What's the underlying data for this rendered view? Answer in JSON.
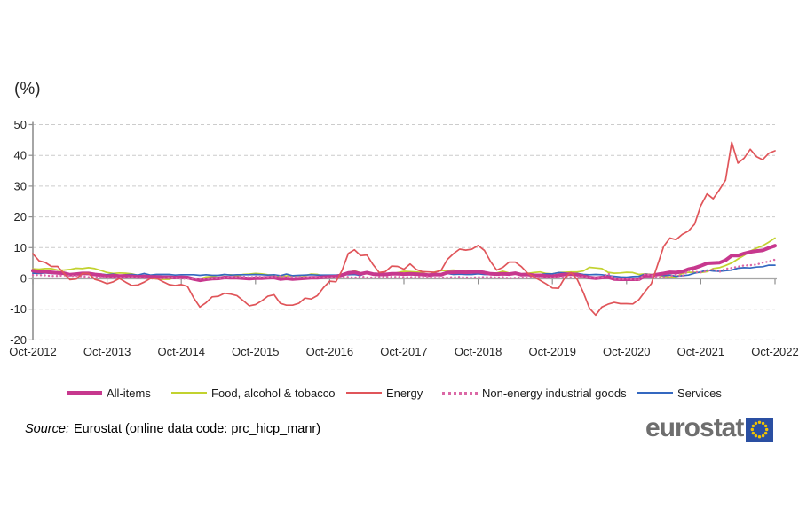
{
  "chart_data": {
    "type": "line",
    "unit_label": "(%)",
    "x_tick_labels": [
      "Oct-2012",
      "Oct-2013",
      "Oct-2014",
      "Oct-2015",
      "Oct-2016",
      "Oct-2017",
      "Oct-2018",
      "Oct-2019",
      "Oct-2020",
      "Oct-2021",
      "Oct-2022"
    ],
    "y_ticks": [
      50,
      40,
      30,
      20,
      10,
      0,
      -10,
      -20
    ],
    "ylim": [
      -20,
      50
    ],
    "x_monthly_start": "Oct-2012",
    "x_monthly_end": "Oct-2022",
    "grid": "dashed-horizontal",
    "legend_position": "bottom",
    "series": [
      {
        "name": "All-items",
        "style": "thick",
        "color": "#c7388e",
        "values": [
          2.5,
          2.2,
          2.2,
          2.0,
          1.8,
          1.7,
          1.2,
          1.4,
          1.6,
          1.6,
          1.3,
          1.1,
          0.7,
          0.9,
          0.8,
          0.8,
          0.7,
          0.5,
          0.7,
          0.5,
          0.5,
          0.4,
          0.4,
          0.3,
          0.4,
          0.3,
          -0.2,
          -0.6,
          -0.3,
          -0.1,
          0.0,
          0.3,
          0.2,
          0.2,
          0.1,
          -0.1,
          0.1,
          0.1,
          0.2,
          0.3,
          -0.2,
          0.0,
          -0.2,
          -0.1,
          0.1,
          0.2,
          0.2,
          0.4,
          0.5,
          0.6,
          1.1,
          1.8,
          2.0,
          1.5,
          1.9,
          1.4,
          1.3,
          1.3,
          1.5,
          1.5,
          1.4,
          1.5,
          1.4,
          1.3,
          1.1,
          1.3,
          1.2,
          1.9,
          2.0,
          2.1,
          2.0,
          2.1,
          2.2,
          1.9,
          1.5,
          1.4,
          1.5,
          1.4,
          1.7,
          1.2,
          1.3,
          1.0,
          1.0,
          0.8,
          0.7,
          1.0,
          1.3,
          1.4,
          1.2,
          0.7,
          0.3,
          0.1,
          0.3,
          0.4,
          -0.2,
          -0.3,
          -0.3,
          -0.3,
          -0.3,
          0.9,
          0.9,
          1.3,
          1.6,
          2.0,
          1.9,
          2.2,
          3.0,
          3.4,
          4.1,
          4.9,
          5.0,
          5.1,
          5.9,
          7.4,
          7.4,
          8.1,
          8.6,
          8.9,
          9.1,
          9.9,
          10.6
        ]
      },
      {
        "name": "Food, alcohol & tobacco",
        "style": "solid",
        "color": "#c2d22f",
        "values": [
          3.1,
          3.0,
          3.2,
          3.2,
          2.7,
          2.7,
          2.9,
          3.3,
          3.2,
          3.5,
          3.2,
          2.6,
          1.9,
          1.6,
          1.8,
          1.7,
          1.5,
          1.0,
          0.7,
          0.1,
          -0.2,
          -0.3,
          -0.3,
          0.3,
          0.5,
          0.5,
          0.0,
          -0.1,
          0.5,
          0.6,
          1.0,
          1.2,
          1.2,
          0.9,
          1.3,
          1.4,
          1.6,
          1.5,
          1.2,
          1.0,
          0.6,
          0.8,
          0.8,
          0.9,
          0.9,
          1.4,
          1.3,
          0.7,
          0.4,
          0.7,
          1.2,
          1.8,
          2.5,
          1.8,
          1.5,
          1.5,
          1.4,
          1.4,
          1.4,
          1.9,
          2.3,
          2.2,
          2.1,
          1.9,
          1.0,
          2.1,
          2.5,
          2.6,
          2.7,
          2.5,
          2.4,
          2.6,
          2.2,
          1.9,
          1.8,
          1.8,
          2.3,
          1.8,
          1.5,
          1.5,
          1.6,
          1.9,
          2.1,
          1.6,
          1.5,
          1.9,
          2.0,
          2.1,
          2.1,
          2.4,
          3.6,
          3.4,
          3.2,
          2.0,
          1.7,
          1.8,
          2.0,
          1.9,
          1.3,
          1.5,
          1.3,
          1.1,
          0.6,
          0.5,
          0.5,
          1.6,
          2.0,
          2.0,
          1.9,
          2.2,
          3.2,
          3.5,
          4.2,
          5.0,
          6.3,
          7.5,
          8.9,
          9.8,
          10.6,
          11.8,
          13.1
        ]
      },
      {
        "name": "Energy",
        "style": "solid",
        "color": "#e0555a",
        "values": [
          8.0,
          5.7,
          5.2,
          3.9,
          3.9,
          1.7,
          -0.4,
          -0.2,
          1.6,
          1.6,
          -0.3,
          -0.9,
          -1.7,
          -1.1,
          0.0,
          -1.2,
          -2.3,
          -2.1,
          -1.2,
          0.0,
          0.1,
          -1.0,
          -2.0,
          -2.3,
          -2.0,
          -2.6,
          -6.3,
          -9.3,
          -7.9,
          -6.0,
          -5.8,
          -4.8,
          -5.1,
          -5.6,
          -7.2,
          -8.9,
          -8.5,
          -7.3,
          -5.8,
          -5.3,
          -8.1,
          -8.7,
          -8.7,
          -8.1,
          -6.4,
          -6.7,
          -5.6,
          -3.0,
          -0.9,
          -1.1,
          2.6,
          8.1,
          9.3,
          7.4,
          7.6,
          4.5,
          1.9,
          2.2,
          4.0,
          3.9,
          3.0,
          4.7,
          2.9,
          2.2,
          2.1,
          2.0,
          2.6,
          6.1,
          8.0,
          9.5,
          9.2,
          9.5,
          10.7,
          9.1,
          5.5,
          2.7,
          3.6,
          5.3,
          5.3,
          3.8,
          1.7,
          0.5,
          -0.6,
          -1.8,
          -3.1,
          -3.2,
          0.2,
          1.9,
          -0.3,
          -4.5,
          -9.7,
          -11.9,
          -9.3,
          -8.4,
          -7.8,
          -8.2,
          -8.2,
          -8.3,
          -6.9,
          -4.2,
          -1.7,
          4.3,
          10.4,
          13.1,
          12.6,
          14.3,
          15.4,
          17.6,
          23.7,
          27.5,
          25.9,
          28.8,
          32.0,
          44.3,
          37.5,
          39.1,
          42.0,
          39.6,
          38.6,
          40.7,
          41.5
        ]
      },
      {
        "name": "Non-energy industrial goods",
        "style": "dotted",
        "color": "#db68a6",
        "values": [
          1.1,
          1.1,
          1.0,
          0.8,
          0.8,
          1.0,
          0.8,
          0.8,
          0.7,
          0.4,
          0.4,
          0.4,
          0.3,
          0.2,
          0.3,
          0.2,
          0.4,
          0.2,
          0.1,
          0.0,
          -0.1,
          0.0,
          0.3,
          0.2,
          -0.1,
          -0.1,
          0.0,
          -0.1,
          -0.1,
          0.0,
          0.1,
          0.2,
          0.4,
          0.4,
          0.6,
          0.3,
          0.6,
          0.5,
          0.5,
          0.7,
          0.7,
          0.5,
          0.5,
          0.5,
          0.4,
          0.4,
          0.3,
          0.3,
          0.3,
          0.3,
          0.3,
          0.5,
          0.2,
          0.7,
          0.3,
          0.3,
          0.4,
          0.5,
          0.5,
          0.5,
          0.4,
          0.4,
          0.5,
          0.6,
          0.6,
          0.2,
          0.3,
          0.3,
          0.4,
          0.5,
          0.3,
          0.3,
          0.4,
          0.4,
          0.4,
          0.3,
          0.4,
          0.1,
          0.2,
          0.3,
          0.2,
          0.4,
          0.3,
          0.2,
          0.3,
          0.4,
          0.5,
          0.3,
          0.5,
          0.5,
          0.3,
          0.2,
          0.2,
          1.6,
          -0.1,
          -0.3,
          -0.1,
          -0.3,
          -0.5,
          1.5,
          1.0,
          0.3,
          0.4,
          0.7,
          1.2,
          0.7,
          2.6,
          2.1,
          2.0,
          2.4,
          2.9,
          2.1,
          3.1,
          3.4,
          3.8,
          4.2,
          4.3,
          4.5,
          5.1,
          5.5,
          6.1
        ]
      },
      {
        "name": "Services",
        "style": "solid",
        "color": "#3468c0",
        "values": [
          1.7,
          1.6,
          1.8,
          1.6,
          1.5,
          1.8,
          1.1,
          1.5,
          1.4,
          1.4,
          1.4,
          1.4,
          1.2,
          1.4,
          1.0,
          1.2,
          1.3,
          1.1,
          1.6,
          1.1,
          1.3,
          1.3,
          1.3,
          1.1,
          1.2,
          1.2,
          1.2,
          1.0,
          1.2,
          1.0,
          1.0,
          1.3,
          1.1,
          1.2,
          1.2,
          1.2,
          1.3,
          1.2,
          1.1,
          1.2,
          0.9,
          1.4,
          0.9,
          1.0,
          1.1,
          1.2,
          1.1,
          1.1,
          1.1,
          1.1,
          1.3,
          1.2,
          1.3,
          1.0,
          1.8,
          1.3,
          1.6,
          1.5,
          1.6,
          1.5,
          1.2,
          1.2,
          1.2,
          1.2,
          1.3,
          1.5,
          1.0,
          1.6,
          1.3,
          1.4,
          1.3,
          1.3,
          1.5,
          1.3,
          1.3,
          1.6,
          1.4,
          1.1,
          1.9,
          1.0,
          1.6,
          1.2,
          1.3,
          1.5,
          1.5,
          1.9,
          1.8,
          1.5,
          1.6,
          1.3,
          1.2,
          1.3,
          1.2,
          0.9,
          0.7,
          0.5,
          0.4,
          0.6,
          0.7,
          1.4,
          1.2,
          1.3,
          0.9,
          1.1,
          0.7,
          0.9,
          1.1,
          1.7,
          2.1,
          2.7,
          2.4,
          2.3,
          2.5,
          2.7,
          3.3,
          3.5,
          3.4,
          3.7,
          3.8,
          4.3,
          4.3
        ]
      }
    ],
    "style_colors": {
      "grid": "#cccccc",
      "zero_axis": "#a6a6a6",
      "axis": "#909090",
      "tick_text": "#262626"
    }
  },
  "legend": {
    "swatch_order": [
      0,
      1,
      2,
      3,
      4
    ],
    "item_lefts": [
      75,
      193,
      390,
      498,
      718
    ]
  },
  "source": {
    "prefix": "Source:",
    "text": "Eurostat (online data code: prc_hicp_manr)"
  },
  "logo": {
    "text": "eurostat",
    "text_color": "#6e6e6e",
    "flag_blue": "#2a4fa2",
    "star_yellow": "#f3c500"
  }
}
